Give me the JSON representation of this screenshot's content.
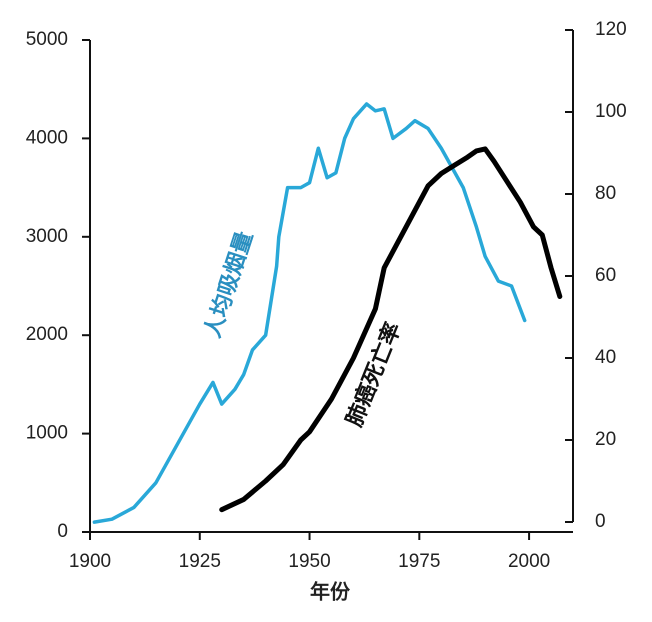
{
  "chart_data": {
    "type": "line",
    "x_label": "年份",
    "annotations": [
      "人均吸烟量",
      "肺癌死亡率"
    ],
    "xlim": [
      1900,
      2010
    ],
    "xticks": [
      1900,
      1925,
      1950,
      1975,
      2000
    ],
    "ylim": [
      0,
      5000
    ],
    "yticks": [
      0,
      1000,
      2000,
      3000,
      4000,
      5000
    ],
    "y2lim": [
      0,
      120
    ],
    "y2ticks": [
      0,
      20,
      40,
      60,
      80,
      100,
      120
    ],
    "series": [
      {
        "name": "人均吸烟量",
        "color": "#29a8d8",
        "x": [
          1901,
          1905,
          1910,
          1915,
          1920,
          1925,
          1928,
          1930,
          1933,
          1935,
          1937,
          1940,
          1942.5,
          1943,
          1945,
          1948,
          1950,
          1952,
          1954,
          1956,
          1958,
          1960,
          1963,
          1965,
          1967,
          1969,
          1972,
          1974,
          1977,
          1980,
          1985,
          1988,
          1990,
          1993,
          1996,
          1999
        ],
        "values": [
          100,
          130,
          250,
          500,
          900,
          1300,
          1520,
          1300,
          1450,
          1600,
          1850,
          2000,
          2700,
          3000,
          3500,
          3500,
          3550,
          3900,
          3600,
          3650,
          4000,
          4200,
          4350,
          4280,
          4300,
          4000,
          4100,
          4180,
          4100,
          3900,
          3500,
          3100,
          2800,
          2550,
          2500,
          2150
        ]
      },
      {
        "name": "肺癌死亡率",
        "color": "#000000",
        "axis": "y2",
        "x": [
          1930,
          1935,
          1940,
          1944,
          1948,
          1950,
          1955,
          1960,
          1965,
          1967,
          1970,
          1972,
          1975,
          1977,
          1980,
          1983,
          1986,
          1988,
          1990,
          1992,
          1995,
          1998,
          2001,
          2003,
          2005,
          2007
        ],
        "values": [
          3,
          5.5,
          10,
          14,
          20,
          22,
          30,
          40,
          52,
          62,
          68,
          72,
          78,
          82,
          85,
          87,
          89,
          90.5,
          91,
          88,
          83,
          78,
          72,
          70,
          62,
          55
        ]
      }
    ]
  }
}
